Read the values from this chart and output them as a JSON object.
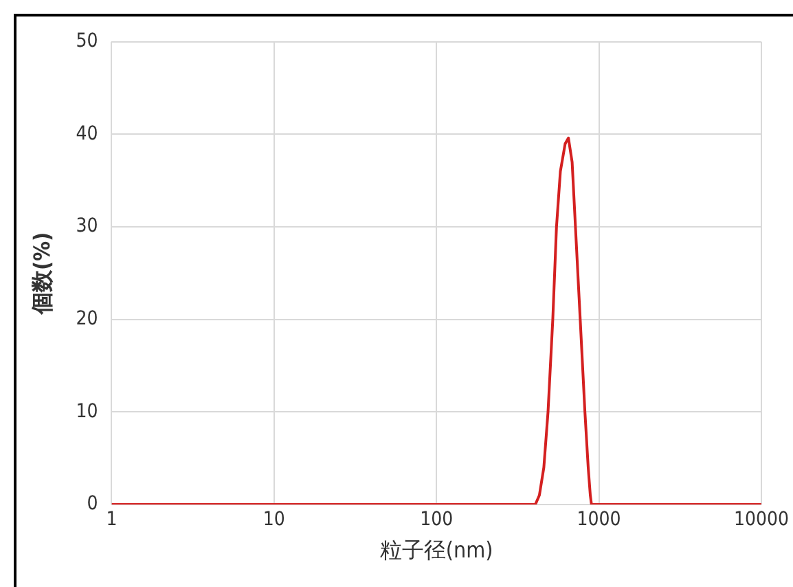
{
  "chart_data": {
    "type": "line",
    "xlabel": "粒子径(nm)",
    "ylabel": "個数(%)",
    "log": "x",
    "x": [
      1,
      406,
      430,
      458,
      486,
      520,
      548,
      579,
      620,
      649,
      684,
      717,
      767,
      820,
      859,
      885,
      900,
      10000
    ],
    "series": [
      {
        "color": "#d42020",
        "values": [
          0,
          0,
          1,
          4,
          10,
          20,
          30,
          36,
          39,
          39.6,
          37,
          30,
          20,
          10,
          4,
          1,
          0,
          0
        ]
      }
    ],
    "xlim": [
      1,
      10000
    ],
    "xticks": [
      1,
      10,
      100,
      1000,
      10000
    ],
    "ylim": [
      0,
      50
    ],
    "yticks": [
      0,
      10,
      20,
      30,
      40,
      50
    ],
    "grid": true,
    "legend": false,
    "marker": "none",
    "line_style": "solid"
  }
}
